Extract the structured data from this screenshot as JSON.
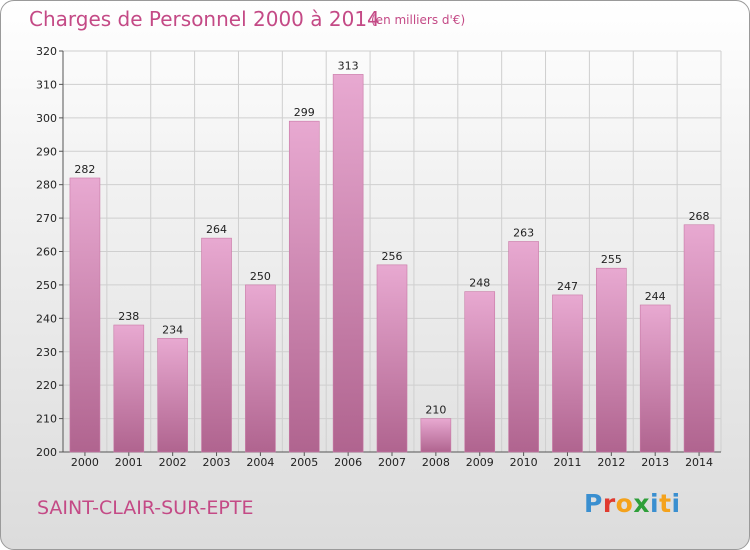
{
  "title": "Charges de Personnel 2000 à 2014",
  "subtitle": "(en milliers d'€)",
  "place": "SAINT-CLAIR-SUR-EPTE",
  "logo": {
    "letters": [
      "P",
      "r",
      "o",
      "x",
      "i",
      "t",
      "i"
    ],
    "colors": [
      "#3a8fd0",
      "#e03a2f",
      "#f4a21c",
      "#2f9f3a",
      "#3a8fd0",
      "#f4a21c",
      "#3a8fd0"
    ]
  },
  "colors": {
    "title": "#c44a86",
    "bar_top": "#e8a9d1",
    "bar_bottom": "#b0648f",
    "grid": "#cfcfcf",
    "axis": "#555555"
  },
  "chart_data": {
    "type": "bar",
    "categories": [
      "2000",
      "2001",
      "2002",
      "2003",
      "2004",
      "2005",
      "2006",
      "2007",
      "2008",
      "2009",
      "2010",
      "2011",
      "2012",
      "2013",
      "2014"
    ],
    "values": [
      282,
      238,
      234,
      264,
      250,
      299,
      313,
      256,
      210,
      248,
      263,
      247,
      255,
      244,
      268
    ],
    "ylim": [
      200,
      320
    ],
    "yticks": [
      200,
      210,
      220,
      230,
      240,
      250,
      260,
      270,
      280,
      290,
      300,
      310,
      320
    ],
    "grid": true
  }
}
